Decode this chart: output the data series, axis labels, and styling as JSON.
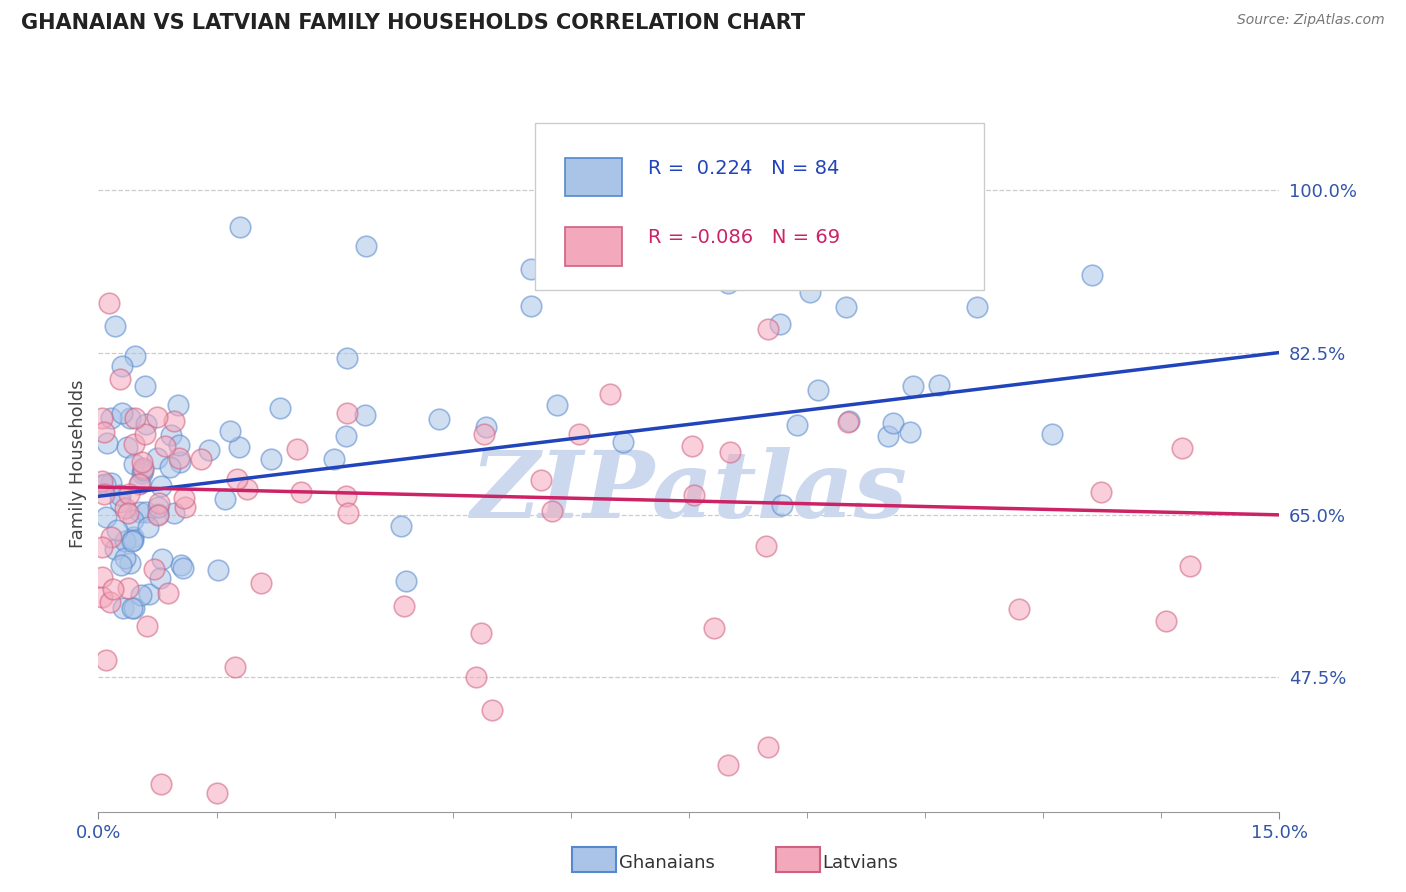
{
  "title": "GHANAIAN VS LATVIAN FAMILY HOUSEHOLDS CORRELATION CHART",
  "source": "Source: ZipAtlas.com",
  "ylabel": "Family Households",
  "ytick_vals": [
    47.5,
    65.0,
    82.5,
    100.0
  ],
  "xmin": 0.0,
  "xmax": 15.0,
  "ymin": 33.0,
  "ymax": 108.0,
  "ghanaian_color": "#aac4e8",
  "ghanaian_edge": "#5588cc",
  "latvian_color": "#f4a8bc",
  "latvian_edge": "#d06080",
  "trend_blue": "#2244bb",
  "trend_pink": "#cc2266",
  "watermark_color": "#ccd8ee",
  "blue_line_y0": 67.0,
  "blue_line_y1": 82.5,
  "pink_line_y0": 68.0,
  "pink_line_y1": 65.0,
  "legend_text1": "R =  0.224   N = 84",
  "legend_text2": "R = -0.086   N = 69"
}
